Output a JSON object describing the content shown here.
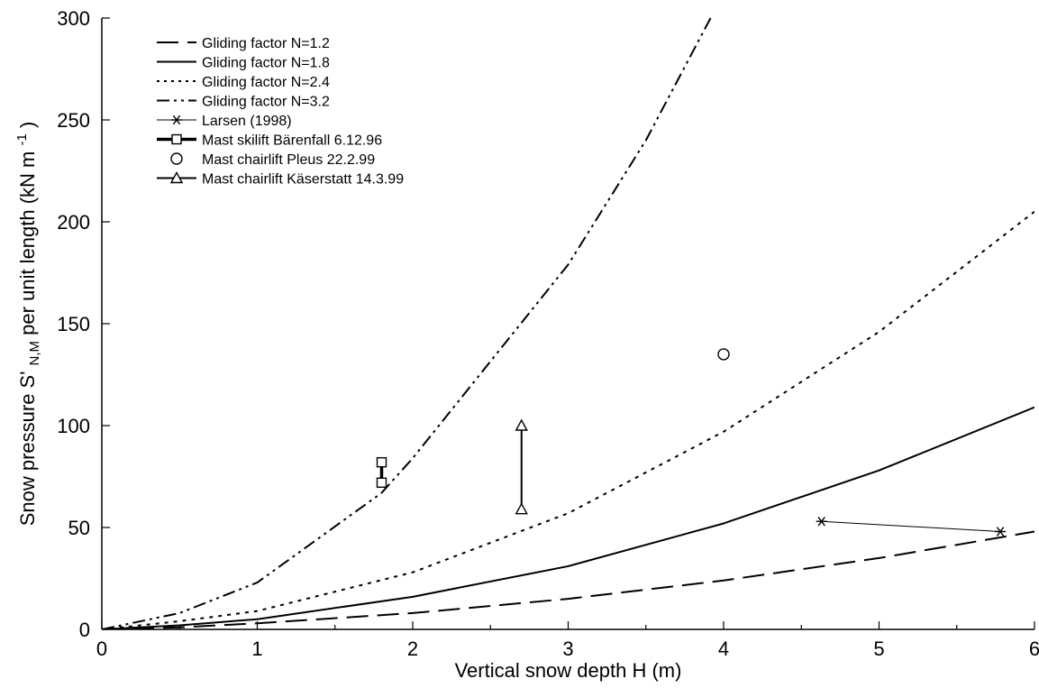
{
  "chart_data": {
    "type": "line",
    "title": "",
    "xlabel": "Vertical snow depth H (m)",
    "ylabel": {
      "prefix": "Snow pressure S'",
      "subscript": "N,M",
      "middle": " per unit length (kN m",
      "superscript": "-1",
      "suffix": ")"
    },
    "xlim": [
      0,
      6
    ],
    "ylim": [
      0,
      300
    ],
    "xticks": [
      "0",
      "1",
      "2",
      "3",
      "4",
      "5",
      "6"
    ],
    "yticks": [
      "0",
      "50",
      "100",
      "150",
      "200",
      "250",
      "300"
    ],
    "grid": false,
    "legend_position": "top-left",
    "series": [
      {
        "name": "Gliding factor N=1.2",
        "style": "long-dash",
        "color": "#000000",
        "x": [
          0,
          0.5,
          1,
          2,
          3,
          4,
          5,
          6
        ],
        "y": [
          0,
          1,
          3,
          8,
          15,
          24,
          35,
          48
        ]
      },
      {
        "name": "Gliding factor N=1.8",
        "style": "solid",
        "color": "#000000",
        "x": [
          0,
          0.5,
          1,
          2,
          3,
          4,
          5,
          6
        ],
        "y": [
          0,
          2,
          5,
          16,
          31,
          52,
          78,
          109
        ]
      },
      {
        "name": "Gliding factor N=2.4",
        "style": "dotted",
        "color": "#000000",
        "x": [
          0,
          0.5,
          1,
          2,
          3,
          4,
          5,
          6
        ],
        "y": [
          0,
          4,
          9,
          28,
          57,
          97,
          146,
          205
        ]
      },
      {
        "name": "Gliding factor N=3.2",
        "style": "dash-dot-dot",
        "color": "#000000",
        "x": [
          0,
          0.5,
          1,
          1.8,
          2,
          3,
          3.5,
          3.93
        ],
        "y": [
          0,
          8,
          23,
          67,
          84,
          179,
          240,
          302
        ]
      },
      {
        "name": "Larsen (1998)",
        "style": "thin-line-asterisk",
        "color": "#000000",
        "x": [
          4.63,
          5.78
        ],
        "y": [
          53,
          48
        ]
      },
      {
        "name": "Mast skilift Bärenfall 6.12.96",
        "style": "thick-line-square",
        "color": "#000000",
        "x": [
          1.8,
          1.8
        ],
        "y": [
          72,
          82
        ]
      },
      {
        "name": "Mast chairlift Pleus 22.2.99",
        "style": "circle-marker",
        "color": "#000000",
        "x": [
          4.0
        ],
        "y": [
          135
        ]
      },
      {
        "name": "Mast chairlift Käserstatt 14.3.99",
        "style": "line-triangle",
        "color": "#000000",
        "x": [
          2.7,
          2.7
        ],
        "y": [
          59,
          100
        ]
      }
    ]
  }
}
